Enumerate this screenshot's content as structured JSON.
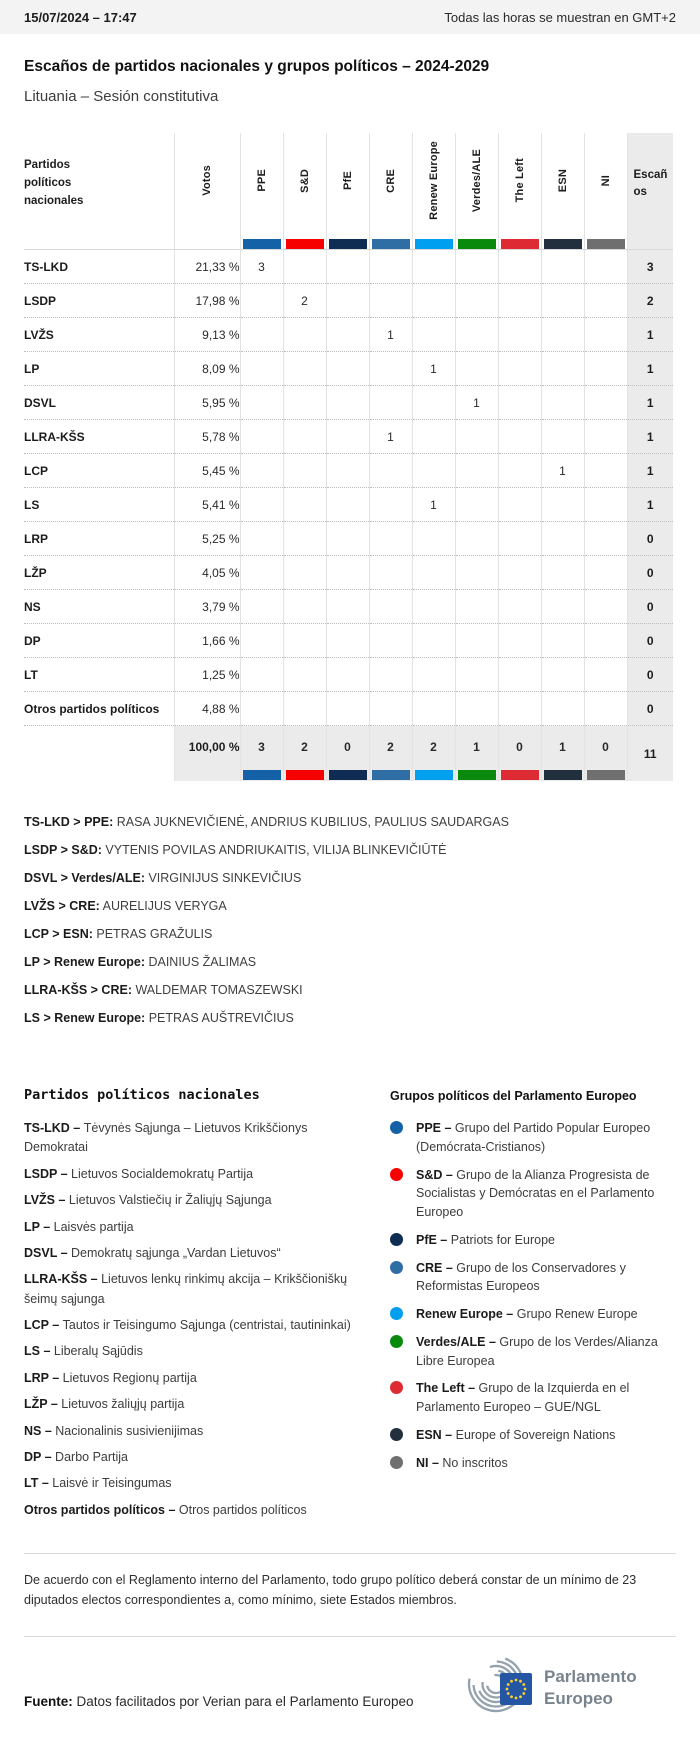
{
  "topbar": {
    "datetime": "15/07/2024 – 17:47",
    "timezone_note": "Todas las horas se muestran en GMT+2"
  },
  "title": "Escaños de partidos nacionales y grupos políticos – 2024-2029",
  "subtitle": "Lituania – Sesión constitutiva",
  "table": {
    "first_col_header": "Partidos políticos nacionales",
    "votes_header": "Votos",
    "seats_header": "Escaños",
    "groups": [
      {
        "name": "PPE",
        "color": "#1561A8"
      },
      {
        "name": "S&D",
        "color": "#F60000"
      },
      {
        "name": "PfE",
        "color": "#0F2D52"
      },
      {
        "name": "CRE",
        "color": "#2F6EA5"
      },
      {
        "name": "Renew Europe",
        "color": "#009FEF"
      },
      {
        "name": "Verdes/ALE",
        "color": "#0A8A0C"
      },
      {
        "name": "The Left",
        "color": "#DE2B33"
      },
      {
        "name": "ESN",
        "color": "#222F3D"
      },
      {
        "name": "NI",
        "color": "#6F6F6F"
      }
    ],
    "rows": [
      {
        "party": "TS-LKD",
        "votes": "21,33 %",
        "seats_by_group": [
          "3",
          "",
          "",
          "",
          "",
          "",
          "",
          "",
          ""
        ],
        "seats": "3"
      },
      {
        "party": "LSDP",
        "votes": "17,98 %",
        "seats_by_group": [
          "",
          "2",
          "",
          "",
          "",
          "",
          "",
          "",
          ""
        ],
        "seats": "2"
      },
      {
        "party": "LVŽS",
        "votes": "9,13 %",
        "seats_by_group": [
          "",
          "",
          "",
          "1",
          "",
          "",
          "",
          "",
          ""
        ],
        "seats": "1"
      },
      {
        "party": "LP",
        "votes": "8,09 %",
        "seats_by_group": [
          "",
          "",
          "",
          "",
          "1",
          "",
          "",
          "",
          ""
        ],
        "seats": "1"
      },
      {
        "party": "DSVL",
        "votes": "5,95 %",
        "seats_by_group": [
          "",
          "",
          "",
          "",
          "",
          "1",
          "",
          "",
          ""
        ],
        "seats": "1"
      },
      {
        "party": "LLRA-KŠS",
        "votes": "5,78 %",
        "seats_by_group": [
          "",
          "",
          "",
          "1",
          "",
          "",
          "",
          "",
          ""
        ],
        "seats": "1"
      },
      {
        "party": "LCP",
        "votes": "5,45 %",
        "seats_by_group": [
          "",
          "",
          "",
          "",
          "",
          "",
          "",
          "1",
          ""
        ],
        "seats": "1"
      },
      {
        "party": "LS",
        "votes": "5,41 %",
        "seats_by_group": [
          "",
          "",
          "",
          "",
          "1",
          "",
          "",
          "",
          ""
        ],
        "seats": "1"
      },
      {
        "party": "LRP",
        "votes": "5,25 %",
        "seats_by_group": [
          "",
          "",
          "",
          "",
          "",
          "",
          "",
          "",
          ""
        ],
        "seats": "0"
      },
      {
        "party": "LŽP",
        "votes": "4,05 %",
        "seats_by_group": [
          "",
          "",
          "",
          "",
          "",
          "",
          "",
          "",
          ""
        ],
        "seats": "0"
      },
      {
        "party": "NS",
        "votes": "3,79 %",
        "seats_by_group": [
          "",
          "",
          "",
          "",
          "",
          "",
          "",
          "",
          ""
        ],
        "seats": "0"
      },
      {
        "party": "DP",
        "votes": "1,66 %",
        "seats_by_group": [
          "",
          "",
          "",
          "",
          "",
          "",
          "",
          "",
          ""
        ],
        "seats": "0"
      },
      {
        "party": "LT",
        "votes": "1,25 %",
        "seats_by_group": [
          "",
          "",
          "",
          "",
          "",
          "",
          "",
          "",
          ""
        ],
        "seats": "0"
      },
      {
        "party": "Otros partidos políticos",
        "votes": "4,88 %",
        "seats_by_group": [
          "",
          "",
          "",
          "",
          "",
          "",
          "",
          "",
          ""
        ],
        "seats": "0"
      }
    ],
    "total": {
      "votes": "100,00 %",
      "by_group": [
        "3",
        "2",
        "0",
        "2",
        "2",
        "1",
        "0",
        "1",
        "0"
      ],
      "seats": "11"
    }
  },
  "elected": [
    {
      "party": "TS-LKD",
      "group": "PPE",
      "names": "RASA JUKNEVIČIENĖ, ANDRIUS KUBILIUS, PAULIUS SAUDARGAS"
    },
    {
      "party": "LSDP",
      "group": "S&D",
      "names": "VYTENIS POVILAS ANDRIUKAITIS, VILIJA BLINKEVIČIŪTĖ"
    },
    {
      "party": "DSVL",
      "group": "Verdes/ALE",
      "names": "VIRGINIJUS SINKEVIČIUS"
    },
    {
      "party": "LVŽS",
      "group": "CRE",
      "names": "AURELIJUS VERYGA"
    },
    {
      "party": "LCP",
      "group": "ESN",
      "names": "PETRAS GRAŽULIS"
    },
    {
      "party": "LP",
      "group": "Renew Europe",
      "names": "DAINIUS ŽALIMAS"
    },
    {
      "party": "LLRA-KŠS",
      "group": "CRE",
      "names": "WALDEMAR TOMASZEWSKI"
    },
    {
      "party": "LS",
      "group": "Renew Europe",
      "names": "PETRAS AUŠTREVIČIUS"
    }
  ],
  "party_legend": {
    "heading": "Partidos políticos nacionales",
    "items": [
      {
        "abbr": "TS-LKD",
        "name": "Tėvynės Sąjunga – Lietuvos Krikščionys Demokratai"
      },
      {
        "abbr": "LSDP",
        "name": "Lietuvos Socialdemokratų Partija"
      },
      {
        "abbr": "LVŽS",
        "name": "Lietuvos Valstiečių ir Žaliųjų Sąjunga"
      },
      {
        "abbr": "LP",
        "name": "Laisvės partija"
      },
      {
        "abbr": "DSVL",
        "name": "Demokratų sąjunga „Vardan Lietuvos“"
      },
      {
        "abbr": "LLRA-KŠS",
        "name": "Lietuvos lenkų rinkimų akcija – Krikščioniškų šeimų sąjunga"
      },
      {
        "abbr": "LCP",
        "name": "Tautos ir Teisingumo Sąjunga (centristai, tautininkai)"
      },
      {
        "abbr": "LS",
        "name": "Liberalų Sąjūdis"
      },
      {
        "abbr": "LRP",
        "name": "Lietuvos Regionų partija"
      },
      {
        "abbr": "LŽP",
        "name": "Lietuvos žaliųjų partija"
      },
      {
        "abbr": "NS",
        "name": "Nacionalinis susivienijimas"
      },
      {
        "abbr": "DP",
        "name": "Darbo Partija"
      },
      {
        "abbr": "LT",
        "name": "Laisvė ir Teisingumas"
      },
      {
        "abbr": "Otros partidos políticos",
        "name": "Otros partidos políticos"
      }
    ]
  },
  "group_legend": {
    "heading": "Grupos políticos del Parlamento Europeo",
    "items": [
      {
        "abbr": "PPE",
        "name": "Grupo del Partido Popular Europeo (Demócrata-Cristianos)",
        "color": "#1561A8"
      },
      {
        "abbr": "S&D",
        "name": "Grupo de la Alianza Progresista de Socialistas y Demócratas en el Parlamento Europeo",
        "color": "#F60000"
      },
      {
        "abbr": "PfE",
        "name": "Patriots for Europe",
        "color": "#0F2D52"
      },
      {
        "abbr": "CRE",
        "name": "Grupo de los Conservadores y Reformistas Europeos",
        "color": "#2F6EA5"
      },
      {
        "abbr": "Renew Europe",
        "name": "Grupo Renew Europe",
        "color": "#009FEF"
      },
      {
        "abbr": "Verdes/ALE",
        "name": "Grupo de los Verdes/Alianza Libre Europea",
        "color": "#0A8A0C"
      },
      {
        "abbr": "The Left",
        "name": "Grupo de la Izquierda en el Parlamento Europeo – GUE/NGL",
        "color": "#DE2B33"
      },
      {
        "abbr": "ESN",
        "name": "Europe of Sovereign Nations",
        "color": "#222F3D"
      },
      {
        "abbr": "NI",
        "name": "No inscritos",
        "color": "#6F6F6F"
      }
    ]
  },
  "footnote": "De acuerdo con el Reglamento interno del Parlamento, todo grupo político deberá constar de un mínimo de 23 diputados electos correspondientes a, como mínimo, siete Estados miembros.",
  "source": {
    "label": "Fuente:",
    "text": "Datos facilitados por Verian para el Parlamento Europeo"
  },
  "logo": {
    "line1": "Parlamento",
    "line2": "Europeo"
  }
}
